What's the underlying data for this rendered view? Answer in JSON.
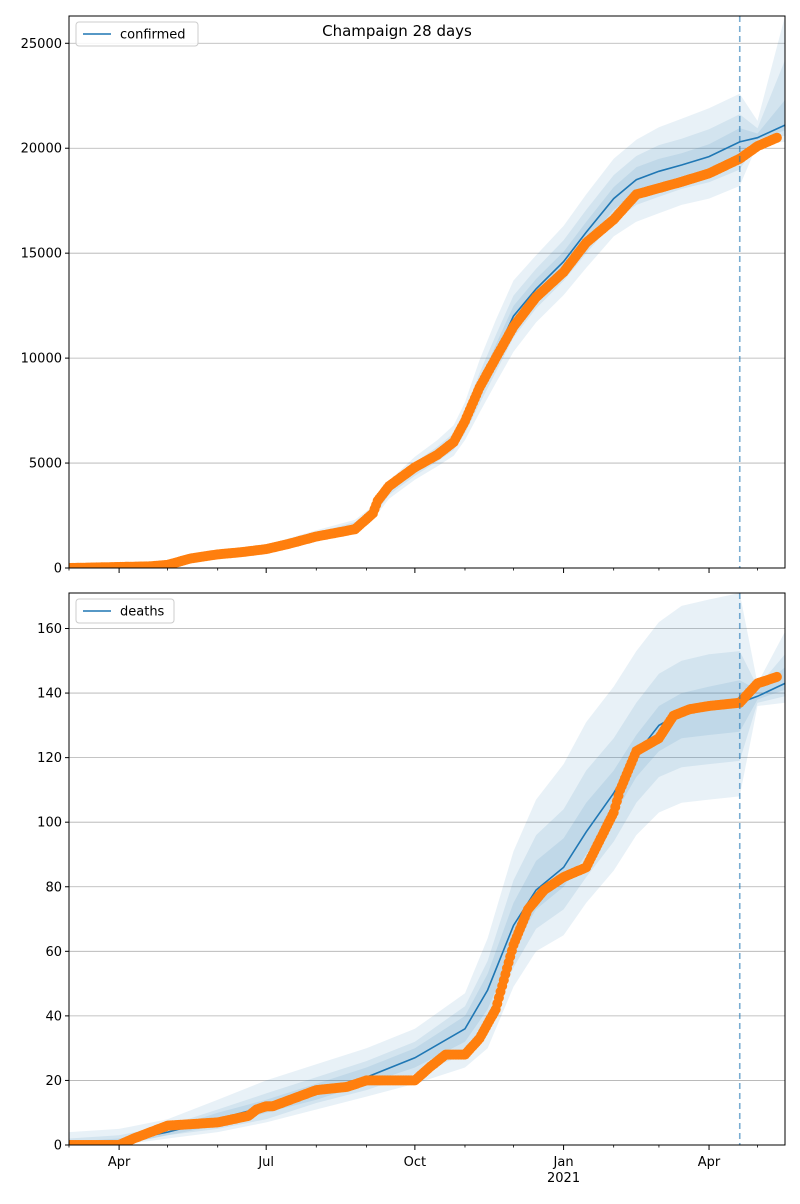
{
  "figure": {
    "title": "Champaign 28 days"
  },
  "colors": {
    "model": "#1f77b4",
    "observed": "#ff7f0e",
    "band": "#1f77b4",
    "vline": "#1f77b4",
    "grid": "#b0b0b0"
  },
  "chart_data": [
    {
      "type": "line",
      "legend": "confirmed",
      "legend_position": "top-left",
      "grid": "horizontal",
      "xlim": [
        "2020-03-01",
        "2021-05-18"
      ],
      "ylim": [
        0,
        26300
      ],
      "yticks": [
        0,
        5000,
        10000,
        15000,
        20000,
        25000
      ],
      "xticks": [
        {
          "date": "2020-04-01",
          "label": "Apr"
        },
        {
          "date": "2020-07-01",
          "label": "Jul"
        },
        {
          "date": "2020-10-01",
          "label": "Oct"
        },
        {
          "date": "2021-01-01",
          "label": "Jan",
          "sublabel": "2021"
        },
        {
          "date": "2021-04-01",
          "label": "Apr"
        }
      ],
      "forecast_start": "2021-04-20",
      "model": {
        "dates": [
          "2020-03-01",
          "2020-04-01",
          "2020-05-01",
          "2020-06-01",
          "2020-07-01",
          "2020-08-01",
          "2020-08-25",
          "2020-09-05",
          "2020-09-15",
          "2020-10-01",
          "2020-10-15",
          "2020-10-25",
          "2020-11-01",
          "2020-11-10",
          "2020-11-20",
          "2020-12-01",
          "2020-12-15",
          "2021-01-01",
          "2021-01-15",
          "2021-02-01",
          "2021-02-15",
          "2021-03-01",
          "2021-03-15",
          "2021-04-01",
          "2021-04-20",
          "2021-05-01",
          "2021-05-18"
        ],
        "median": [
          0,
          30,
          150,
          550,
          900,
          1500,
          2000,
          2600,
          3700,
          4700,
          5400,
          6000,
          6900,
          8500,
          10200,
          12000,
          13300,
          14600,
          16000,
          17600,
          18500,
          18900,
          19200,
          19600,
          20300,
          20500,
          21100
        ]
      },
      "bands": [
        {
          "level": "outer",
          "lower": [
            0,
            20,
            110,
            450,
            750,
            1250,
            1750,
            2300,
            3300,
            4200,
            4850,
            5350,
            6100,
            7400,
            8800,
            10300,
            11700,
            13000,
            14300,
            15800,
            16500,
            16900,
            17300,
            17600,
            18200,
            20200,
            20300
          ],
          "upper": [
            80,
            60,
            220,
            700,
            1100,
            1800,
            2300,
            2950,
            4150,
            5300,
            6100,
            6800,
            7900,
            9900,
            11800,
            13700,
            14900,
            16300,
            17800,
            19500,
            20400,
            21000,
            21400,
            21900,
            22600,
            21300,
            26300
          ]
        },
        {
          "level": "middle",
          "lower": [
            0,
            25,
            125,
            490,
            800,
            1350,
            1860,
            2420,
            3480,
            4400,
            5080,
            5620,
            6420,
            7820,
            9320,
            10980,
            12370,
            13680,
            15000,
            16500,
            17300,
            17690,
            18060,
            18380,
            18980,
            20300,
            20600
          ],
          "upper": [
            40,
            45,
            185,
            630,
            1020,
            1680,
            2190,
            2810,
            3950,
            5030,
            5790,
            6420,
            7440,
            9280,
            11080,
            12980,
            14260,
            15620,
            17060,
            18720,
            19630,
            20150,
            20450,
            20900,
            21620,
            20950,
            24200
          ]
        },
        {
          "level": "inner",
          "lower": [
            0,
            28,
            138,
            520,
            850,
            1420,
            1930,
            2500,
            3590,
            4560,
            5250,
            5820,
            6680,
            8180,
            9780,
            11520,
            12840,
            14150,
            15520,
            17070,
            17920,
            18320,
            18660,
            19010,
            19640,
            20400,
            20850
          ],
          "upper": [
            20,
            38,
            165,
            590,
            960,
            1590,
            2090,
            2700,
            3820,
            4850,
            5570,
            6180,
            7130,
            8830,
            10630,
            12490,
            13770,
            15070,
            16490,
            18150,
            19090,
            19490,
            19760,
            20190,
            20960,
            20700,
            22300
          ]
        }
      ],
      "observed": {
        "dates": [
          "2020-03-01",
          "2020-04-01",
          "2020-04-20",
          "2020-05-01",
          "2020-05-15",
          "2020-06-01",
          "2020-06-15",
          "2020-07-01",
          "2020-07-15",
          "2020-08-01",
          "2020-08-15",
          "2020-08-25",
          "2020-09-05",
          "2020-09-08",
          "2020-09-15",
          "2020-10-01",
          "2020-10-15",
          "2020-10-25",
          "2020-11-01",
          "2020-11-10",
          "2020-11-20",
          "2020-12-01",
          "2020-12-15",
          "2021-01-01",
          "2021-01-15",
          "2021-02-01",
          "2021-02-15",
          "2021-03-01",
          "2021-03-15",
          "2021-04-01",
          "2021-04-20",
          "2021-05-01",
          "2021-05-13"
        ],
        "values": [
          0,
          50,
          80,
          150,
          450,
          650,
          750,
          900,
          1150,
          1500,
          1700,
          1850,
          2600,
          3200,
          3900,
          4800,
          5400,
          6000,
          7000,
          8600,
          10000,
          11500,
          12900,
          14100,
          15500,
          16600,
          17800,
          18100,
          18400,
          18800,
          19500,
          20100,
          20500
        ]
      }
    },
    {
      "type": "line",
      "legend": "deaths",
      "legend_position": "top-left",
      "grid": "horizontal",
      "xlim": [
        "2020-03-01",
        "2021-05-18"
      ],
      "ylim": [
        0,
        171
      ],
      "yticks": [
        0,
        20,
        40,
        60,
        80,
        100,
        120,
        140,
        160
      ],
      "xticks": [
        {
          "date": "2020-04-01",
          "label": "Apr"
        },
        {
          "date": "2020-07-01",
          "label": "Jul"
        },
        {
          "date": "2020-10-01",
          "label": "Oct"
        },
        {
          "date": "2021-01-01",
          "label": "Jan",
          "sublabel": "2021"
        },
        {
          "date": "2021-04-01",
          "label": "Apr"
        }
      ],
      "forecast_start": "2021-04-20",
      "model": {
        "dates": [
          "2020-03-01",
          "2020-04-01",
          "2020-05-01",
          "2020-06-01",
          "2020-07-01",
          "2020-08-01",
          "2020-09-01",
          "2020-10-01",
          "2020-11-01",
          "2020-11-15",
          "2020-12-01",
          "2020-12-15",
          "2021-01-01",
          "2021-01-15",
          "2021-02-01",
          "2021-02-15",
          "2021-03-01",
          "2021-03-15",
          "2021-04-01",
          "2021-04-20",
          "2021-05-01",
          "2021-05-18"
        ],
        "median": [
          0,
          1,
          4,
          8,
          12,
          16,
          21,
          27,
          36,
          48,
          68,
          79,
          86,
          97,
          109,
          121,
          130,
          134,
          136,
          137,
          139,
          143
        ]
      },
      "bands": [
        {
          "level": "outer",
          "lower": [
            0,
            0,
            2,
            4,
            7,
            11,
            15,
            19,
            24,
            30,
            49,
            60,
            65,
            75,
            85,
            96,
            103,
            106,
            107,
            108,
            136,
            137
          ],
          "upper": [
            4,
            5,
            8,
            14,
            20,
            25,
            30,
            36,
            47,
            64,
            91,
            107,
            118,
            131,
            142,
            153,
            162,
            167,
            169,
            171,
            143,
            159
          ]
        },
        {
          "level": "middle",
          "lower": [
            0,
            0,
            3,
            5,
            8,
            13,
            17,
            22,
            28,
            36,
            55,
            67,
            73,
            83,
            94,
            106,
            114,
            117,
            118,
            119,
            137,
            139
          ],
          "upper": [
            2,
            3,
            6,
            11,
            16,
            21,
            26,
            32,
            43,
            57,
            82,
            96,
            104,
            116,
            126,
            137,
            146,
            150,
            152,
            153,
            142,
            152
          ]
        },
        {
          "level": "inner",
          "lower": [
            0,
            0,
            3,
            6,
            10,
            14,
            19,
            24,
            32,
            42,
            61,
            73,
            80,
            90,
            102,
            114,
            122,
            126,
            127,
            128,
            138,
            141
          ],
          "upper": [
            1,
            2,
            5,
            10,
            14,
            19,
            24,
            30,
            40,
            53,
            75,
            88,
            95,
            106,
            116,
            127,
            136,
            140,
            142,
            144,
            141,
            148
          ]
        }
      ],
      "observed": {
        "dates": [
          "2020-03-01",
          "2020-04-01",
          "2020-04-10",
          "2020-05-01",
          "2020-06-01",
          "2020-06-20",
          "2020-06-25",
          "2020-07-01",
          "2020-07-05",
          "2020-08-01",
          "2020-08-20",
          "2020-09-01",
          "2020-10-01",
          "2020-10-10",
          "2020-10-20",
          "2020-11-01",
          "2020-11-10",
          "2020-11-20",
          "2020-12-01",
          "2020-12-10",
          "2020-12-20",
          "2021-01-01",
          "2021-01-15",
          "2021-02-01",
          "2021-02-05",
          "2021-02-15",
          "2021-03-01",
          "2021-03-10",
          "2021-03-20",
          "2021-04-01",
          "2021-04-20",
          "2021-05-01",
          "2021-05-13"
        ],
        "values": [
          0,
          0,
          2,
          6,
          7,
          9,
          11,
          12,
          12,
          17,
          18,
          20,
          20,
          24,
          28,
          28,
          33,
          42,
          62,
          73,
          79,
          83,
          86,
          103,
          110,
          122,
          126,
          133,
          135,
          136,
          137,
          143,
          145
        ]
      }
    }
  ]
}
